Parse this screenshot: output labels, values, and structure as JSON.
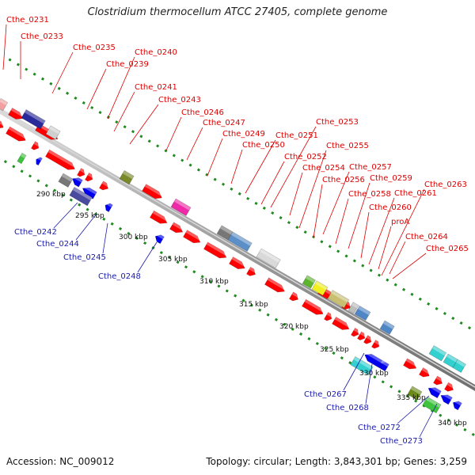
{
  "title": "Clostridium thermocellum ATCC 27405, complete genome",
  "footer": {
    "accession": "Accession: NC_009012",
    "summary": "Topology: circular; Length: 3,843,301 bp; Genes: 3,259"
  },
  "colors": {
    "forward": "#ff0000",
    "reverse": "#0000ee",
    "backbone": "#a9a9a9",
    "tick_dots": "#1f8a1f",
    "label_forward": "#dd0000",
    "label_reverse": "#1a1aaa"
  },
  "ticks": [
    "290 kbp",
    "295 kbp",
    "300 kbp",
    "305 kbp",
    "310 kbp",
    "315 kbp",
    "320 kbp",
    "325 kbp",
    "330 kbp",
    "335 kbp",
    "340 kbp"
  ],
  "forward_labels": [
    "Cthe_0231",
    "Cthe_0233",
    "Cthe_0235",
    "Cthe_0239",
    "Cthe_0240",
    "Cthe_0241",
    "Cthe_0243",
    "Cthe_0246",
    "Cthe_0247",
    "Cthe_0249",
    "Cthe_0250",
    "Cthe_0251",
    "Cthe_0252",
    "Cthe_0253",
    "Cthe_0254",
    "Cthe_0255",
    "Cthe_0256",
    "Cthe_0257",
    "Cthe_0258",
    "Cthe_0259",
    "Cthe_0260",
    "Cthe_0261",
    "proA",
    "Cthe_0263",
    "Cthe_0264",
    "Cthe_0265"
  ],
  "reverse_labels": [
    "Cthe_0242",
    "Cthe_0244",
    "Cthe_0245",
    "Cthe_0248",
    "Cthe_0267",
    "Cthe_0268",
    "Cthe_0272",
    "Cthe_0273"
  ]
}
